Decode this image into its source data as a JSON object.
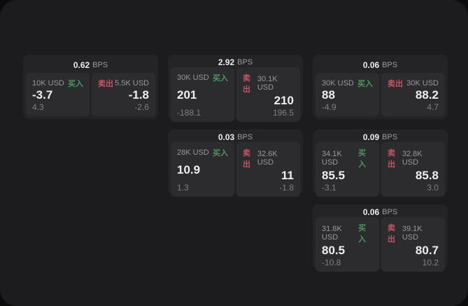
{
  "theme": {
    "page_bg": "#1c1c1e",
    "card_bg": "#242427",
    "panel_bg": "#2c2c2f",
    "text_primary": "#eeeef0",
    "text_secondary": "#97979c",
    "text_tertiary": "#7e7e84",
    "text_muted": "#9b9ba0",
    "buy_color": "#4f9363",
    "sell_color": "#c05566"
  },
  "labels": {
    "bps_unit": "BPS",
    "buy": "买入",
    "sell": "卖出"
  },
  "cards": [
    {
      "bps": "0.62",
      "buy": {
        "size": "10K USD",
        "value": "-3.7",
        "delta": "4.3"
      },
      "sell": {
        "size": "5.5K USD",
        "value": "-1.8",
        "delta": "-2.6"
      }
    },
    {
      "bps": "2.92",
      "buy": {
        "size": "30K USD",
        "value": "201",
        "delta": "-188.1"
      },
      "sell": {
        "size": "30.1K USD",
        "value": "210",
        "delta": "196.5"
      }
    },
    {
      "bps": "0.06",
      "buy": {
        "size": "30K USD",
        "value": "88",
        "delta": "-4.9"
      },
      "sell": {
        "size": "30K USD",
        "value": "88.2",
        "delta": "4.7"
      }
    },
    {
      "bps": "0.03",
      "buy": {
        "size": "28K USD",
        "value": "10.9",
        "delta": "1.3"
      },
      "sell": {
        "size": "32.6K USD",
        "value": "11",
        "delta": "-1.8"
      }
    },
    {
      "bps": "0.09",
      "buy": {
        "size": "34.1K USD",
        "value": "85.5",
        "delta": "-3.1"
      },
      "sell": {
        "size": "32.8K USD",
        "value": "85.8",
        "delta": "3.0"
      }
    },
    {
      "bps": "0.06",
      "buy": {
        "size": "31.8K USD",
        "value": "80.5",
        "delta": "-10.8"
      },
      "sell": {
        "size": "39.1K USD",
        "value": "80.7",
        "delta": "10.2"
      }
    }
  ]
}
